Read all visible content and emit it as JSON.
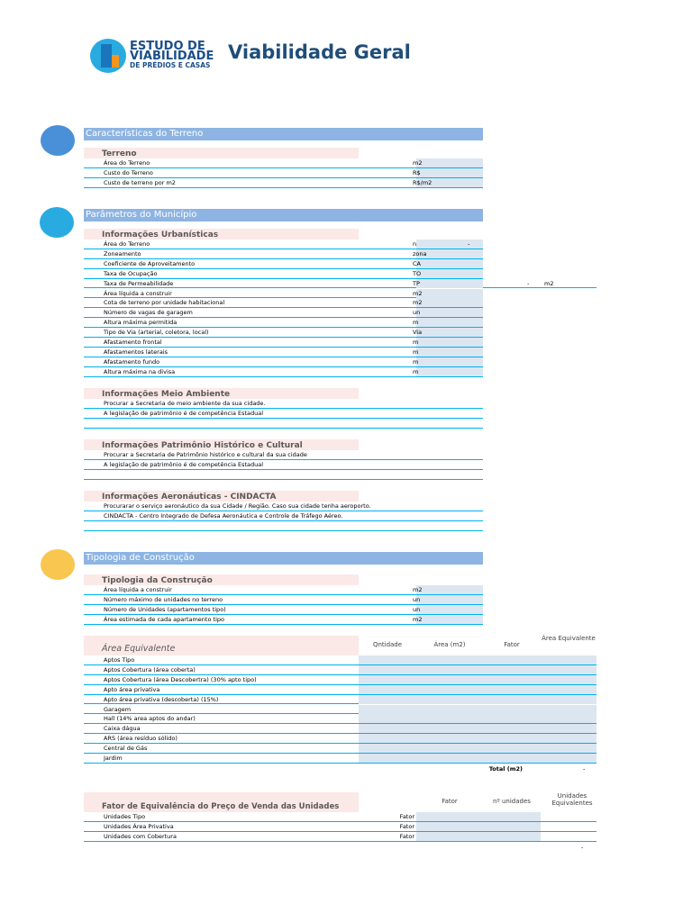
{
  "header": {
    "brand": [
      "ESTUDO DE",
      "VIABILIDADE",
      "DE PRÉDIOS E CASAS"
    ],
    "title": "Viabilidade Geral"
  },
  "sections": [
    {
      "title": "Características do Terreno",
      "groups": [
        {
          "title": "Terreno",
          "rows": [
            {
              "label": "Área do Terreno",
              "unit": "m2"
            },
            {
              "label": "Custo do Terreno",
              "unit": "R$"
            },
            {
              "label": "Custo de terreno por m2",
              "unit": "R$/m2"
            }
          ]
        }
      ]
    },
    {
      "title": "Parâmetros do Município",
      "groups": [
        {
          "title": "Informações Urbanísticas",
          "rows": [
            {
              "label": "Área do Terreno",
              "unit": "n",
              "extras": [
                "-"
              ]
            },
            {
              "label": "Zoneamento",
              "unit": "zona"
            },
            {
              "label": "Coeficiente de Aproveitamento",
              "unit": "CA"
            },
            {
              "label": "Taxa de Ocupação",
              "unit": "TO"
            },
            {
              "label": "Taxa de Permeabilidade",
              "unit": "TP",
              "extras": [
                "-",
                "m2"
              ]
            },
            {
              "label": "Área líquida a construir",
              "unit": "m2"
            },
            {
              "label": "Cota de terreno por unidade habitacional",
              "unit": "m2"
            },
            {
              "label": "Número de vagas de garagem",
              "unit": "un"
            },
            {
              "label": "Altura máxima permitida",
              "unit": "m"
            },
            {
              "label": "Tipo de Via (arterial, coletora, local)",
              "unit": "Via"
            },
            {
              "label": "Afastamento frontal",
              "unit": "m"
            },
            {
              "label": "Afastamentos laterais",
              "unit": "m"
            },
            {
              "label": "Afastamento fundo",
              "unit": "m"
            },
            {
              "label": "Altura máxima na divisa",
              "unit": "m"
            }
          ]
        },
        {
          "title": "Informações Meio Ambiente",
          "rows": [
            {
              "label": "Procurar a Secretaria de meio ambiente da sua cidade."
            },
            {
              "label": "A legislação de patrimônio é de competência Estadual"
            }
          ]
        },
        {
          "title": "Informações Patrimônio Histórico e Cultural",
          "rows": [
            {
              "label": "Procurar a Secretaria de Patrimônio histórico e cultural da sua cidade"
            },
            {
              "label": "A legislação de patrimônio é de competência Estadual"
            }
          ]
        },
        {
          "title": "Informações Aeronáuticas - CINDACTA",
          "rows": [
            {
              "label": "Procurarar o serviço aeronáutico da sua Cidade / Região. Caso sua cidade tenha aeroporto."
            },
            {
              "label": "CINDACTA - Centro Integrado de Defesa Aeronáutica e Controle de Tráfego Aéreo."
            }
          ]
        }
      ]
    },
    {
      "title": "Tipologia de Construção",
      "groups": [
        {
          "title": "Tipologia da Construção",
          "rows": [
            {
              "label": "Área líquida a construir",
              "unit": "m2"
            },
            {
              "label": "Número máximo de unidades no terreno",
              "unit": "un"
            },
            {
              "label": "Número de Unidades (apartamentos tipo)",
              "unit": "un"
            },
            {
              "label": "Área estimada de cada apartamento tipo",
              "unit": "m2"
            }
          ]
        }
      ]
    }
  ],
  "area_table": {
    "title": "Área Equivalente",
    "columns": [
      "Qntidade",
      "Área (m2)",
      "Fator",
      "Área Equivalente"
    ],
    "rows": [
      "Aptos Tipo",
      "Aptos Cobertura (área coberta)",
      "Aptos Cobertura (área Descobertra) (30% apto tipo)",
      "Apto área privativa",
      "Apto área privativa (descoberta) (15%)",
      "Garagem",
      "Hall (14% area aptos do andar)",
      "Caixa dágua",
      "ARS (área resíduo sólido)",
      "Central de Gás",
      "Jardim"
    ],
    "total_label": "Total (m2)",
    "total_value": "-"
  },
  "fator_table": {
    "title": "Fator de Equivalência do Preço de Venda das Unidades",
    "columns": [
      "Fator",
      "nº unidades",
      "Unidades Equivalentes"
    ],
    "rows": [
      {
        "label": "Unidades Tipo",
        "unit": "Fator"
      },
      {
        "label": "Unidades Área Privativa",
        "unit": "Fator"
      },
      {
        "label": "Unidades com Cobertura",
        "unit": "Fator"
      }
    ],
    "total_value": "-"
  }
}
